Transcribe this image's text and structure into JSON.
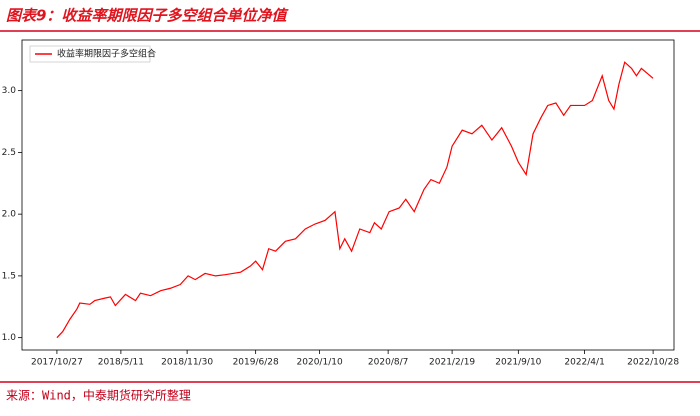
{
  "chart_data": {
    "type": "line",
    "title": "图表9：收益率期限因子多空组合单位净值",
    "source": "来源：Wind，中泰期货研究所整理",
    "x": [
      "2017/10/27",
      "2017/11/14",
      "2017/12/6",
      "2017/12/27",
      "2018/1/5",
      "2018/2/5",
      "2018/2/20",
      "2018/3/23",
      "2018/4/9",
      "2018/4/24",
      "2018/5/25",
      "2018/6/25",
      "2018/7/10",
      "2018/8/10",
      "2018/9/10",
      "2018/10/10",
      "2018/11/9",
      "2018/12/3",
      "2018/12/25",
      "2019/1/24",
      "2019/2/25",
      "2019/3/27",
      "2019/5/13",
      "2019/6/12",
      "2019/6/28",
      "2019/7/19",
      "2019/8/7",
      "2019/8/28",
      "2019/9/27",
      "2019/10/28",
      "2019/11/27",
      "2019/12/27",
      "2020/1/27",
      "2020/2/26",
      "2020/3/12",
      "2020/3/27",
      "2020/4/17",
      "2020/5/12",
      "2020/6/12",
      "2020/6/26",
      "2020/7/17",
      "2020/8/10",
      "2020/9/10",
      "2020/9/30",
      "2020/10/26",
      "2020/11/25",
      "2020/12/16",
      "2021/1/11",
      "2021/2/3",
      "2021/2/19",
      "2021/3/22",
      "2021/4/21",
      "2021/5/21",
      "2021/6/21",
      "2021/7/21",
      "2021/8/20",
      "2021/9/10",
      "2021/10/4",
      "2021/10/25",
      "2021/11/18",
      "2021/12/9",
      "2022/1/3",
      "2022/1/27",
      "2022/2/17",
      "2022/4/1",
      "2022/4/25",
      "2022/5/25",
      "2022/6/14",
      "2022/6/30",
      "2022/7/15",
      "2022/8/2",
      "2022/8/23",
      "2022/9/7",
      "2022/9/22",
      "2022/10/28"
    ],
    "series": [
      {
        "name": "收益率期限因子多空组合",
        "color": "#ff0000",
        "values": [
          1.0,
          1.05,
          1.15,
          1.23,
          1.28,
          1.27,
          1.3,
          1.32,
          1.33,
          1.26,
          1.35,
          1.3,
          1.36,
          1.34,
          1.38,
          1.4,
          1.43,
          1.5,
          1.47,
          1.52,
          1.5,
          1.51,
          1.53,
          1.58,
          1.62,
          1.55,
          1.72,
          1.7,
          1.78,
          1.8,
          1.88,
          1.92,
          1.95,
          2.02,
          1.72,
          1.8,
          1.7,
          1.88,
          1.85,
          1.93,
          1.88,
          2.02,
          2.05,
          2.12,
          2.02,
          2.2,
          2.28,
          2.25,
          2.38,
          2.55,
          2.68,
          2.65,
          2.72,
          2.6,
          2.7,
          2.55,
          2.42,
          2.32,
          2.65,
          2.78,
          2.88,
          2.9,
          2.8,
          2.88,
          2.88,
          2.92,
          3.12,
          2.92,
          2.85,
          3.05,
          3.23,
          3.18,
          3.12,
          3.18,
          3.1
        ]
      }
    ],
    "xlim": [
      "2017/7/12",
      "2022/12/31"
    ],
    "xticks": [
      "2017/10/27",
      "2018/5/11",
      "2018/11/30",
      "2019/6/28",
      "2020/1/10",
      "2020/8/7",
      "2021/2/19",
      "2021/9/10",
      "2022/4/1",
      "2022/10/28"
    ],
    "ylim": [
      0.9,
      3.41
    ],
    "yticks": [
      {
        "value": 1,
        "label": "1.0"
      },
      1.5,
      {
        "value": 2,
        "label": "2.0"
      },
      2.5,
      {
        "value": 3,
        "label": "3.0"
      }
    ],
    "legend": "upper left"
  }
}
